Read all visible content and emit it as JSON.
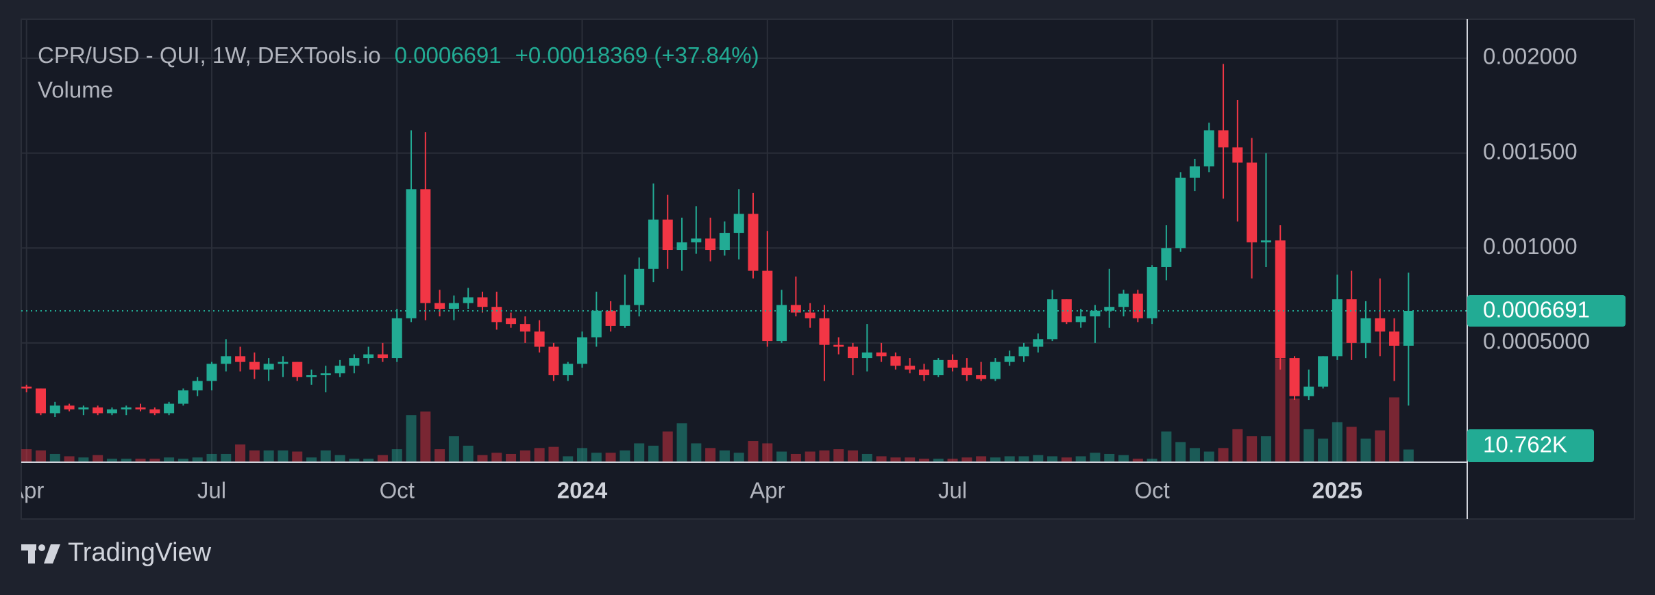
{
  "chart_data": {
    "type": "candlestick",
    "title": "CPR/USD - QUI, 1W, DEXTools.io",
    "change_label": "+0.00018369 (+37.84%)",
    "volume_title": "Volume",
    "last_volume_label": "10.762K",
    "up_color": "#22ab94",
    "down_color": "#f23645",
    "grid": true,
    "categories": [
      "Apr",
      null,
      null,
      null,
      null,
      null,
      null,
      null,
      null,
      null,
      null,
      null,
      null,
      "Jul",
      null,
      null,
      null,
      null,
      null,
      null,
      null,
      null,
      null,
      null,
      null,
      null,
      "Oct",
      null,
      null,
      null,
      null,
      null,
      null,
      null,
      null,
      null,
      null,
      null,
      null,
      "2024",
      null,
      null,
      null,
      null,
      null,
      null,
      null,
      null,
      null,
      null,
      null,
      null,
      "Apr",
      null,
      null,
      null,
      null,
      null,
      null,
      null,
      null,
      null,
      null,
      null,
      null,
      "Jul",
      null,
      null,
      null,
      null,
      null,
      null,
      null,
      null,
      null,
      null,
      null,
      null,
      null,
      "Oct",
      null,
      null,
      null,
      null,
      null,
      null,
      null,
      null,
      null,
      null,
      null,
      null,
      "2025",
      null,
      null,
      null,
      null,
      null
    ],
    "open": [
      0.00027,
      0.00026,
      0.00013,
      0.00017,
      0.00015,
      0.00016,
      0.00013,
      0.00015,
      0.00016,
      0.00015,
      0.00013,
      0.00018,
      0.00025,
      0.0003,
      0.00039,
      0.00043,
      0.0004,
      0.00036,
      0.00039,
      0.0004,
      0.00032,
      0.00033,
      0.00034,
      0.00038,
      0.00042,
      0.00044,
      0.00042,
      0.00063,
      0.00131,
      0.00071,
      0.00068,
      0.00071,
      0.00074,
      0.00069,
      0.00063,
      0.0006,
      0.00056,
      0.00048,
      0.00033,
      0.00039,
      0.00053,
      0.00067,
      0.00059,
      0.0007,
      0.00089,
      0.00115,
      0.00099,
      0.00103,
      0.00105,
      0.00099,
      0.00108,
      0.00118,
      0.00088,
      0.00051,
      0.0007,
      0.00066,
      0.00063,
      0.00049,
      0.00048,
      0.00042,
      0.00045,
      0.00043,
      0.00038,
      0.00036,
      0.00033,
      0.00041,
      0.00037,
      0.00033,
      0.00031,
      0.0004,
      0.00043,
      0.00048,
      0.00052,
      0.00073,
      0.00061,
      0.00064,
      0.00067,
      0.00069,
      0.00076,
      0.00063,
      0.0009,
      0.001,
      0.00137,
      0.00143,
      0.00162,
      0.00153,
      0.00145,
      0.00103,
      0.00104,
      0.00042,
      0.00022,
      0.00027,
      0.00043,
      0.00073,
      0.0005,
      0.00063,
      0.00056,
      0.00048541
    ],
    "high": [
      0.00028,
      0.00026,
      0.00019,
      0.00018,
      0.00017,
      0.00017,
      0.00016,
      0.00017,
      0.00018,
      0.00016,
      0.00019,
      0.00026,
      0.00032,
      0.0004,
      0.00052,
      0.00048,
      0.00045,
      0.00042,
      0.00043,
      0.0004,
      0.00036,
      0.00038,
      0.00041,
      0.00044,
      0.00048,
      0.0005,
      0.00068,
      0.00162,
      0.00161,
      0.00078,
      0.00075,
      0.00079,
      0.00077,
      0.00077,
      0.00066,
      0.00064,
      0.00062,
      0.0005,
      0.0004,
      0.00056,
      0.00077,
      0.00072,
      0.00086,
      0.00095,
      0.00134,
      0.00128,
      0.00116,
      0.00122,
      0.00116,
      0.00114,
      0.00131,
      0.00129,
      0.00109,
      0.00078,
      0.00085,
      0.00071,
      0.0007,
      0.00053,
      0.0005,
      0.0006,
      0.0005,
      0.00045,
      0.00042,
      0.00039,
      0.00042,
      0.00044,
      0.00042,
      0.0004,
      0.00042,
      0.00046,
      0.0005,
      0.00055,
      0.00078,
      0.00073,
      0.00068,
      0.0007,
      0.00089,
      0.00078,
      0.00078,
      0.00091,
      0.00112,
      0.0014,
      0.00147,
      0.00166,
      0.00197,
      0.00178,
      0.00158,
      0.0015,
      0.00112,
      0.00043,
      0.00036,
      0.00043,
      0.00086,
      0.00088,
      0.00072,
      0.00084,
      0.00063,
      0.00087
    ],
    "low": [
      0.00024,
      0.00012,
      0.00011,
      0.00014,
      0.00012,
      0.00012,
      0.00012,
      0.00012,
      0.00014,
      0.00012,
      0.00012,
      0.00017,
      0.00022,
      0.00025,
      0.00035,
      0.00035,
      0.00031,
      0.0003,
      0.00032,
      0.0003,
      0.00028,
      0.00024,
      0.00032,
      0.00034,
      0.00039,
      0.0004,
      0.0004,
      0.00061,
      0.00062,
      0.00064,
      0.00062,
      0.00068,
      0.00066,
      0.00057,
      0.00058,
      0.0005,
      0.00045,
      0.0003,
      0.0003,
      0.00037,
      0.00048,
      0.00056,
      0.00058,
      0.00064,
      0.00082,
      0.00089,
      0.00088,
      0.00097,
      0.00093,
      0.00096,
      0.00094,
      0.00084,
      0.00048,
      0.0005,
      0.00064,
      0.00058,
      0.0003,
      0.00044,
      0.00033,
      0.00035,
      0.0004,
      0.00036,
      0.00034,
      0.0003,
      0.00032,
      0.00035,
      0.0003,
      0.0003,
      0.0003,
      0.00038,
      0.0004,
      0.00045,
      0.00051,
      0.0006,
      0.00058,
      0.0005,
      0.00058,
      0.00064,
      0.00061,
      0.0006,
      0.00083,
      0.00098,
      0.0013,
      0.0014,
      0.00126,
      0.00114,
      0.00084,
      0.0009,
      0.00036,
      0.0002,
      0.0002,
      0.00026,
      0.00041,
      0.00041,
      0.00042,
      0.00043,
      0.0003,
      0.00017
    ],
    "close": [
      0.00026,
      0.00013,
      0.00017,
      0.00015,
      0.00016,
      0.00013,
      0.00015,
      0.00016,
      0.00015,
      0.00013,
      0.00018,
      0.00025,
      0.0003,
      0.00039,
      0.00043,
      0.0004,
      0.00036,
      0.00039,
      0.0004,
      0.00032,
      0.00033,
      0.00034,
      0.00038,
      0.00042,
      0.00044,
      0.00042,
      0.00063,
      0.00131,
      0.00071,
      0.00068,
      0.00071,
      0.00074,
      0.00069,
      0.00061,
      0.0006,
      0.00056,
      0.00048,
      0.00033,
      0.00039,
      0.00053,
      0.00067,
      0.00059,
      0.0007,
      0.00089,
      0.00115,
      0.00099,
      0.00103,
      0.00105,
      0.00099,
      0.00108,
      0.00118,
      0.00088,
      0.00051,
      0.0007,
      0.00066,
      0.00063,
      0.00049,
      0.00048,
      0.00042,
      0.00045,
      0.00043,
      0.00038,
      0.00036,
      0.00033,
      0.00041,
      0.00037,
      0.00033,
      0.00031,
      0.0004,
      0.00043,
      0.00048,
      0.00052,
      0.00073,
      0.00061,
      0.00064,
      0.00067,
      0.00069,
      0.00076,
      0.00063,
      0.0009,
      0.001,
      0.00137,
      0.00143,
      0.00162,
      0.00153,
      0.00145,
      0.00103,
      0.00104,
      0.00042,
      0.00022,
      0.00027,
      0.00043,
      0.00073,
      0.0005,
      0.00063,
      0.00056,
      0.00048541,
      0.0006691
    ],
    "volume": [
      11000,
      10000,
      7000,
      5000,
      4000,
      6000,
      3000,
      3000,
      3000,
      3000,
      4000,
      3000,
      4000,
      7000,
      7000,
      15000,
      10000,
      10000,
      10000,
      9000,
      4000,
      10000,
      6000,
      3000,
      3000,
      6000,
      11000,
      40000,
      43000,
      11000,
      22000,
      14000,
      6000,
      8000,
      7000,
      10000,
      12000,
      13000,
      5000,
      12000,
      8000,
      8000,
      10000,
      16000,
      14000,
      26000,
      33000,
      16000,
      12000,
      10000,
      8000,
      18000,
      16000,
      9000,
      7000,
      9000,
      10000,
      11000,
      10000,
      7000,
      5000,
      4000,
      4000,
      3000,
      3000,
      3000,
      4000,
      5000,
      4000,
      5000,
      5000,
      6000,
      5000,
      4000,
      5000,
      8000,
      7000,
      6000,
      3000,
      3000,
      26000,
      17000,
      12000,
      9000,
      12000,
      28000,
      22000,
      22000,
      88000,
      54000,
      28000,
      20000,
      34000,
      30000,
      20000,
      27000,
      55000,
      10762
    ],
    "ylim": [
      -0.000128,
      0.0022056
    ],
    "yticks": [
      {
        "value": 0.0005,
        "label": "0.0005000"
      },
      {
        "value": 0.001,
        "label": "0.001000"
      },
      {
        "value": 0.0015,
        "label": "0.001500"
      },
      {
        "value": 0.002,
        "label": "0.002000"
      }
    ]
  },
  "footer": {
    "brand": "TradingView"
  }
}
